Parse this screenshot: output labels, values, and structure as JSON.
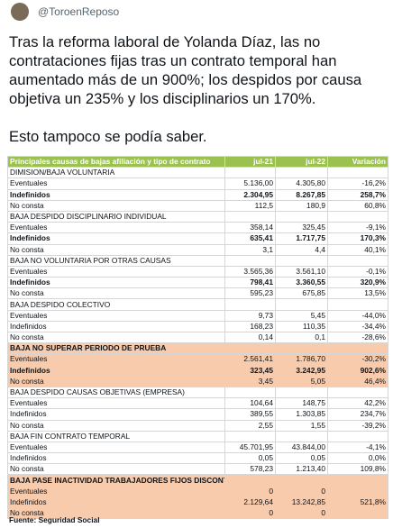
{
  "tweet": {
    "handle": "@ToroenReposo",
    "paragraphs": [
      "Tras la reforma laboral de Yolanda Díaz, las no contrataciones fijas tras un contrato temporal han aumentado más de un 900%; los despidos por causa objetiva un 235% y los disciplinarios un 170%.",
      "Esto tampoco se podía saber."
    ]
  },
  "table": {
    "header": [
      "Principales causas de bajas afiliación y tipo de contrato",
      "jul-21",
      "jul-22",
      "Variación"
    ],
    "groups": [
      {
        "title": "DIMISION/BAJA VOLUNTARIA",
        "highlight": false,
        "rows": [
          {
            "cells": [
              "Eventuales",
              "5.136,00",
              "4.305,80",
              "-16,2%"
            ],
            "bold": false
          },
          {
            "cells": [
              "Indefinidos",
              "2.304,95",
              "8.267,85",
              "258,7%"
            ],
            "bold": true
          },
          {
            "cells": [
              "No consta",
              "112,5",
              "180,9",
              "60,8%"
            ],
            "bold": false
          }
        ]
      },
      {
        "title": "BAJA DESPIDO DISCIPLINARIO INDIVIDUAL",
        "highlight": false,
        "rows": [
          {
            "cells": [
              "Eventuales",
              "358,14",
              "325,45",
              "-9,1%"
            ],
            "bold": false
          },
          {
            "cells": [
              "Indefinidos",
              "635,41",
              "1.717,75",
              "170,3%"
            ],
            "bold": true
          },
          {
            "cells": [
              "No consta",
              "3,1",
              "4,4",
              "40,1%"
            ],
            "bold": false
          }
        ]
      },
      {
        "title": "BAJA NO VOLUNTARIA POR OTRAS CAUSAS",
        "highlight": false,
        "rows": [
          {
            "cells": [
              "Eventuales",
              "3.565,36",
              "3.561,10",
              "-0,1%"
            ],
            "bold": false
          },
          {
            "cells": [
              "Indefinidos",
              "798,41",
              "3.360,55",
              "320,9%"
            ],
            "bold": true
          },
          {
            "cells": [
              "No consta",
              "595,23",
              "675,85",
              "13,5%"
            ],
            "bold": false
          }
        ]
      },
      {
        "title": "BAJA DESPIDO COLECTIVO",
        "highlight": false,
        "rows": [
          {
            "cells": [
              "Eventuales",
              "9,73",
              "5,45",
              "-44,0%"
            ],
            "bold": false
          },
          {
            "cells": [
              "Indefinidos",
              "168,23",
              "110,35",
              "-34,4%"
            ],
            "bold": false
          },
          {
            "cells": [
              "No consta",
              "0,14",
              "0,1",
              "-28,6%"
            ],
            "bold": false
          }
        ]
      },
      {
        "title": "BAJA NO SUPERAR PERIODO DE PRUEBA",
        "highlight": true,
        "rows": [
          {
            "cells": [
              "Eventuales",
              "2.561,41",
              "1.786,70",
              "-30,2%"
            ],
            "bold": false
          },
          {
            "cells": [
              "Indefinidos",
              "323,45",
              "3.242,95",
              "902,6%"
            ],
            "bold": true
          },
          {
            "cells": [
              "No consta",
              "3,45",
              "5,05",
              "46,4%"
            ],
            "bold": false
          }
        ]
      },
      {
        "title": "BAJA DESPIDO CAUSAS OBJETIVAS (EMPRESA)",
        "highlight": false,
        "rows": [
          {
            "cells": [
              "Eventuales",
              "104,64",
              "148,75",
              "42,2%"
            ],
            "bold": false
          },
          {
            "cells": [
              "Indefinidos",
              "389,55",
              "1.303,85",
              "234,7%"
            ],
            "bold": false
          },
          {
            "cells": [
              "No consta",
              "2,55",
              "1,55",
              "-39,2%"
            ],
            "bold": false
          }
        ]
      },
      {
        "title": "BAJA FIN CONTRATO TEMPORAL",
        "highlight": false,
        "rows": [
          {
            "cells": [
              "Eventuales",
              "45.701,95",
              "43.844,00",
              "-4,1%"
            ],
            "bold": false
          },
          {
            "cells": [
              "Indefinidos",
              "0,05",
              "0,05",
              "0,0%"
            ],
            "bold": false
          },
          {
            "cells": [
              "No consta",
              "578,23",
              "1.213,40",
              "109,8%"
            ],
            "bold": false
          }
        ]
      },
      {
        "title": "BAJA PASE INACTIVIDAD TRABAJADORES FIJOS DISCONTINUOS",
        "highlight": true,
        "rows": [
          {
            "cells": [
              "Eventuales",
              "0",
              "0",
              null
            ],
            "bold": false
          },
          {
            "cells": [
              "Indefinidos",
              "2.129,64",
              "13.242,85",
              "521,8%"
            ],
            "bold": false
          },
          {
            "cells": [
              "No consta",
              "0",
              "0",
              null
            ],
            "bold": false
          }
        ]
      }
    ],
    "source": "Fuente: Seguridad Social"
  }
}
